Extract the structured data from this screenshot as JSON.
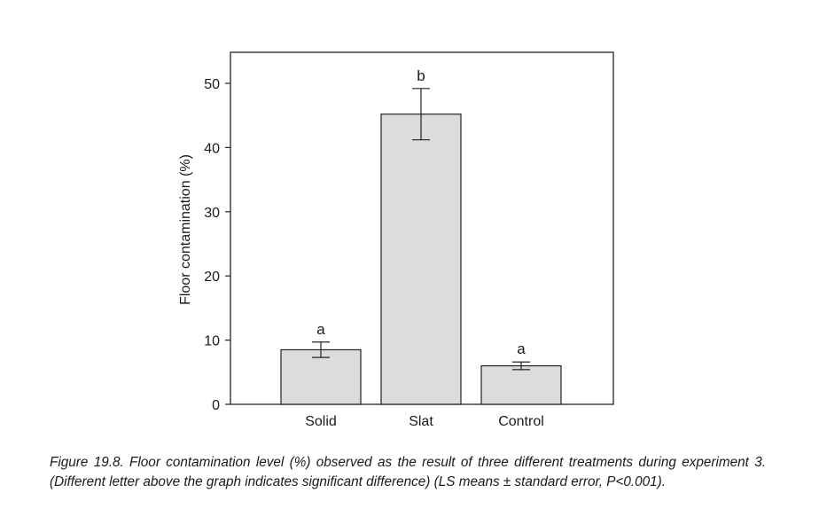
{
  "chart_data": {
    "type": "bar",
    "categories": [
      "Solid",
      "Slat",
      "Control"
    ],
    "values": [
      8.5,
      45.2,
      6.0
    ],
    "errors": [
      1.2,
      4.0,
      0.6
    ],
    "significance_letters": [
      "a",
      "b",
      "a"
    ],
    "ylabel": "Floor contamination (%)",
    "xlabel": "",
    "ylim": [
      0,
      55
    ],
    "yticks": [
      0,
      10,
      20,
      30,
      40,
      50
    ],
    "grid": false,
    "bar_color": "#dcdcdc",
    "edge_color": "#222222"
  },
  "caption": {
    "text": "Figure 19.8. Floor contamination level (%) observed as the result of three different treatments during experiment 3. (Different letter above the graph indicates significant difference) (LS means ± standard error, P<0.001)."
  }
}
